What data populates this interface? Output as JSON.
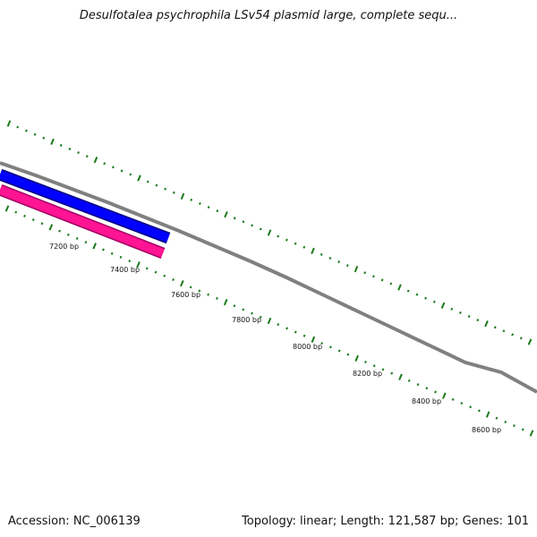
{
  "title": "Desulfotalea psychrophila LSv54 plasmid large, complete sequ...",
  "footer": {
    "accession": "Accession: NC_006139",
    "topology": "Topology: linear; Length: 121,587 bp; Genes: 101"
  },
  "map": {
    "tick_labels": [
      "7200 bp",
      "7400 bp",
      "7600 bp",
      "7800 bp",
      "8000 bp",
      "8200 bp",
      "8400 bp",
      "8600 bp"
    ],
    "colors": {
      "backbone": "#808080",
      "tick": "#1a7a1a",
      "feature_forward": "#0000ff",
      "feature_reverse": "#ff1493"
    }
  }
}
